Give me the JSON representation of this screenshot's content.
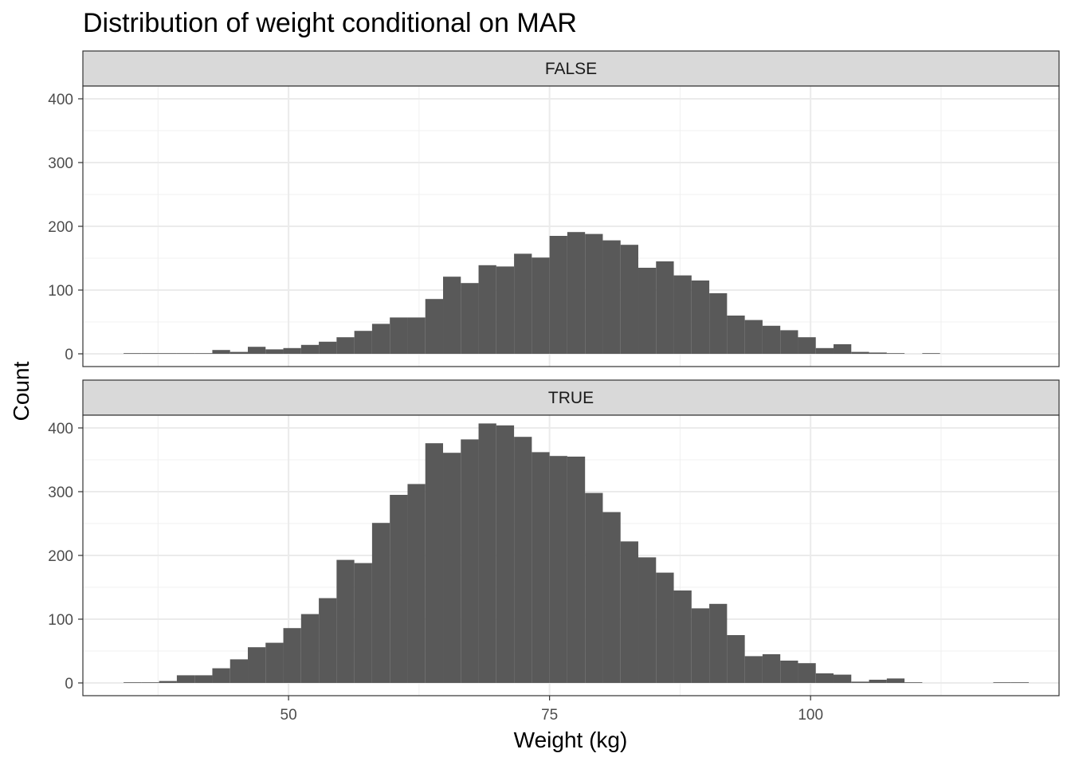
{
  "chart_data": {
    "type": "bar",
    "title": "Distribution of weight conditional on MAR",
    "xlabel": "Weight (kg)",
    "ylabel": "Count",
    "xlim": [
      30.3,
      123.8
    ],
    "ylim": [
      -20,
      420
    ],
    "x_ticks": [
      50,
      75,
      100
    ],
    "y_ticks": [
      0,
      100,
      200,
      300,
      400
    ],
    "bin_start": 34.2,
    "bin_width": 1.7,
    "grid": true,
    "bar_color": "#595959",
    "facet_strip_color": "#d9d9d9",
    "facets": [
      {
        "label": "FALSE",
        "values": [
          1,
          1,
          1,
          1,
          1,
          6,
          3,
          11,
          7,
          9,
          14,
          19,
          26,
          36,
          47,
          57,
          57,
          86,
          121,
          111,
          139,
          137,
          157,
          151,
          185,
          191,
          188,
          178,
          171,
          135,
          145,
          123,
          115,
          95,
          60,
          53,
          44,
          37,
          26,
          9,
          15,
          3,
          2,
          1,
          0,
          1,
          0,
          0,
          0,
          0,
          0,
          0,
          0
        ]
      },
      {
        "label": "TRUE",
        "values": [
          1,
          1,
          3,
          12,
          12,
          23,
          37,
          56,
          63,
          86,
          108,
          133,
          193,
          188,
          251,
          295,
          312,
          376,
          361,
          382,
          407,
          404,
          386,
          362,
          356,
          355,
          298,
          268,
          222,
          197,
          173,
          145,
          117,
          124,
          75,
          42,
          45,
          35,
          31,
          15,
          13,
          2,
          5,
          7,
          1,
          0,
          0,
          0,
          0,
          1,
          1,
          0,
          0
        ]
      }
    ]
  }
}
